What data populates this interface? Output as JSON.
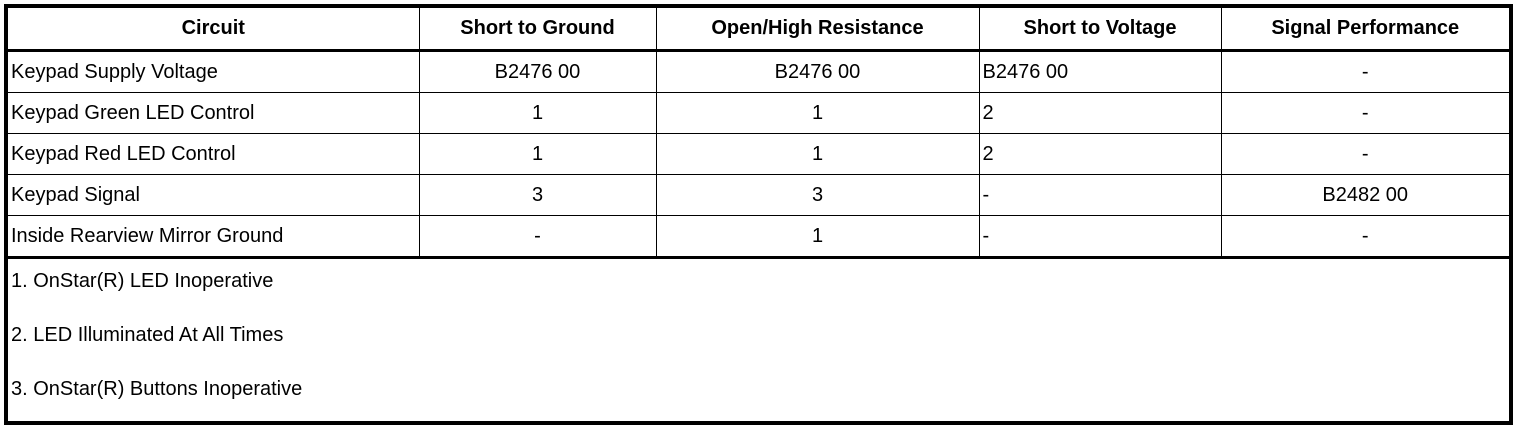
{
  "headers": [
    "Circuit",
    "Short to Ground",
    "Open/High Resistance",
    "Short to Voltage",
    "Signal Performance"
  ],
  "rows": [
    [
      "Keypad Supply Voltage",
      "B2476 00",
      "B2476 00",
      "B2476 00",
      "-"
    ],
    [
      "Keypad Green LED Control",
      "1",
      "1",
      "2",
      "-"
    ],
    [
      "Keypad Red LED Control",
      "1",
      "1",
      "2",
      "-"
    ],
    [
      "Keypad Signal",
      "3",
      "3",
      "-",
      "B2482 00"
    ],
    [
      "Inside Rearview Mirror Ground",
      "-",
      "1",
      "-",
      "-"
    ]
  ],
  "notes": [
    "1. OnStar(R) LED Inoperative",
    "2. LED Illuminated At All Times",
    "3. OnStar(R) Buttons Inoperative"
  ]
}
